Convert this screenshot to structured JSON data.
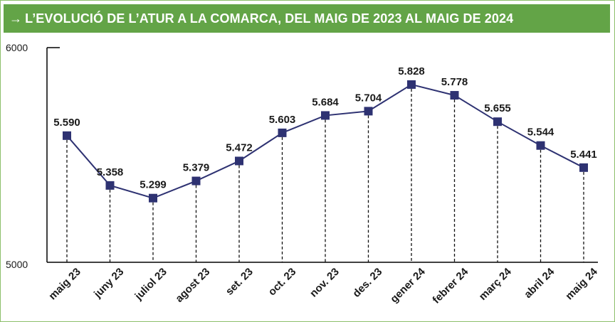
{
  "header": {
    "arrow": "→",
    "title": "L’EVOLUCIÓ DE L’ATUR A LA COMARCA, DEL MAIG DE 2023 AL MAIG DE 2024"
  },
  "colors": {
    "header_bg": "#63a447",
    "line": "#2e3272",
    "marker": "#2e3272",
    "axis": "#000000"
  },
  "chart_data": {
    "type": "line",
    "title": "L’EVOLUCIÓ DE L’ATUR A LA COMARCA, DEL MAIG DE 2023 AL MAIG DE 2024",
    "xlabel": "",
    "ylabel": "",
    "ylim": [
      5000,
      6000
    ],
    "y_ticks": [
      "6000",
      "5000"
    ],
    "categories": [
      "maig 23",
      "juny 23",
      "juliol 23",
      "agost 23",
      "set. 23",
      "oct. 23",
      "nov. 23",
      "des. 23",
      "gener 24",
      "febrer 24",
      "març 24",
      "abril 24",
      "maig 24"
    ],
    "values": [
      5590,
      5358,
      5299,
      5379,
      5472,
      5603,
      5684,
      5704,
      5828,
      5778,
      5655,
      5544,
      5441
    ],
    "value_labels": [
      "5.590",
      "5.358",
      "5.299",
      "5.379",
      "5.472",
      "5.603",
      "5.684",
      "5.704",
      "5.828",
      "5.778",
      "5.655",
      "5.544",
      "5.441"
    ],
    "grid": false,
    "legend": "none"
  }
}
